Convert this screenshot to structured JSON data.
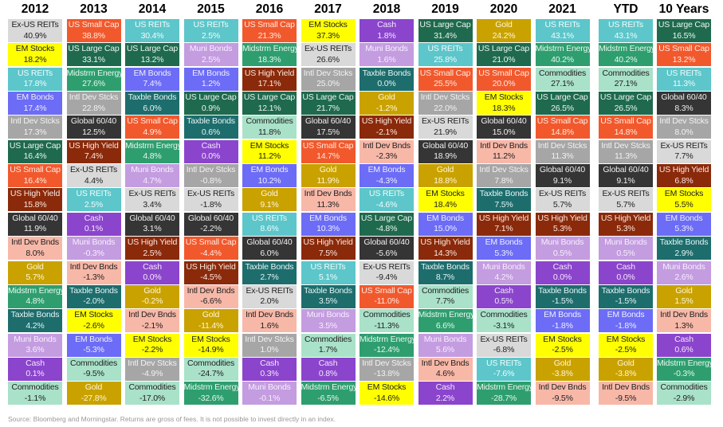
{
  "chart_data": {
    "type": "table",
    "title": "",
    "asset_colors": {
      "Ex-US REITs": {
        "bg": "#d9d9d9",
        "fg": "#222222"
      },
      "EM Stocks": {
        "bg": "#ffff00",
        "fg": "#222222"
      },
      "US REITs": {
        "bg": "#5cc6ca",
        "fg": "#f2fbfb"
      },
      "EM Bonds": {
        "bg": "#6c6cf6",
        "fg": "#eeeeff"
      },
      "Intl Dev Stcks": {
        "bg": "#a6a6a6",
        "fg": "#f2f2f2"
      },
      "US Large Cap": {
        "bg": "#1f6a4e",
        "fg": "#eaf5ef"
      },
      "US Small Cap": {
        "bg": "#f1592d",
        "fg": "#ffe9e0"
      },
      "US High Yield": {
        "bg": "#8a2a0b",
        "fg": "#fbe6dd"
      },
      "Global 60/40": {
        "bg": "#353535",
        "fg": "#eeeeee"
      },
      "Intl Dev Bnds": {
        "bg": "#f8b8a8",
        "fg": "#222222"
      },
      "Gold": {
        "bg": "#c9a200",
        "fg": "#fff6d6"
      },
      "Midstrm Energy": {
        "bg": "#2f9e6f",
        "fg": "#e6f7ee"
      },
      "Taxble Bonds": {
        "bg": "#1e6d6d",
        "fg": "#e4f3f3"
      },
      "Muni Bonds": {
        "bg": "#c49ce0",
        "fg": "#f7effd"
      },
      "Cash": {
        "bg": "#8b45cc",
        "fg": "#f3e9fb"
      },
      "Commodities": {
        "bg": "#a9e1c9",
        "fg": "#222222"
      }
    },
    "columns": [
      {
        "header": "2012",
        "cells": [
          [
            "Ex-US REITs",
            "40.9%"
          ],
          [
            "EM Stocks",
            "18.2%"
          ],
          [
            "US REITs",
            "17.8%"
          ],
          [
            "EM Bonds",
            "17.4%"
          ],
          [
            "Intl Dev Stcks",
            "17.3%"
          ],
          [
            "US Large Cap",
            "16.4%"
          ],
          [
            "US Small Cap",
            "16.4%"
          ],
          [
            "US High Yield",
            "15.8%"
          ],
          [
            "Global 60/40",
            "11.9%"
          ],
          [
            "Intl Dev Bnds",
            "8.0%"
          ],
          [
            "Gold",
            "5.7%"
          ],
          [
            "Midstrm Energy",
            "4.8%"
          ],
          [
            "Taxble Bonds",
            "4.2%"
          ],
          [
            "Muni Bonds",
            "3.6%"
          ],
          [
            "Cash",
            "0.1%"
          ],
          [
            "Commodities",
            "-1.1%"
          ]
        ]
      },
      {
        "header": "2013",
        "cells": [
          [
            "US Small Cap",
            "38.8%"
          ],
          [
            "US Large Cap",
            "33.1%"
          ],
          [
            "Midstrm Energy",
            "27.6%"
          ],
          [
            "Intl Dev Stcks",
            "22.8%"
          ],
          [
            "Global 60/40",
            "12.5%"
          ],
          [
            "US High Yield",
            "7.4%"
          ],
          [
            "Ex-US REITs",
            "4.4%"
          ],
          [
            "US REITs",
            "2.5%"
          ],
          [
            "Cash",
            "0.1%"
          ],
          [
            "Muni Bonds",
            "-0.3%"
          ],
          [
            "Intl Dev Bnds",
            "-1.3%"
          ],
          [
            "Taxble Bonds",
            "-2.0%"
          ],
          [
            "EM Stocks",
            "-2.6%"
          ],
          [
            "EM Bonds",
            "-5.3%"
          ],
          [
            "Commodities",
            "-9.5%"
          ],
          [
            "Gold",
            "-27.8%"
          ]
        ]
      },
      {
        "header": "2014",
        "cells": [
          [
            "US REITs",
            "30.4%"
          ],
          [
            "US Large Cap",
            "13.2%"
          ],
          [
            "EM Bonds",
            "7.4%"
          ],
          [
            "Taxble Bonds",
            "6.0%"
          ],
          [
            "US Small Cap",
            "4.9%"
          ],
          [
            "Midstrm Energy",
            "4.8%"
          ],
          [
            "Muni Bonds",
            "4.7%"
          ],
          [
            "Ex-US REITs",
            "3.4%"
          ],
          [
            "Global 60/40",
            "3.1%"
          ],
          [
            "US High Yield",
            "2.5%"
          ],
          [
            "Cash",
            "0.0%"
          ],
          [
            "Gold",
            "-0.2%"
          ],
          [
            "Intl Dev Bnds",
            "-2.1%"
          ],
          [
            "EM Stocks",
            "-2.2%"
          ],
          [
            "Intl Dev Stcks",
            "-4.9%"
          ],
          [
            "Commodities",
            "-17.0%"
          ]
        ]
      },
      {
        "header": "2015",
        "cells": [
          [
            "US REITs",
            "2.5%"
          ],
          [
            "Muni Bonds",
            "2.5%"
          ],
          [
            "EM Bonds",
            "1.2%"
          ],
          [
            "US Large Cap",
            "0.9%"
          ],
          [
            "Taxble Bonds",
            "0.6%"
          ],
          [
            "Cash",
            "0.0%"
          ],
          [
            "Intl Dev Stcks",
            "-0.8%"
          ],
          [
            "Ex-US REITs",
            "-1.8%"
          ],
          [
            "Global 60/40",
            "-2.2%"
          ],
          [
            "US Small Cap",
            "-4.4%"
          ],
          [
            "US High Yield",
            "-4.5%"
          ],
          [
            "Intl Dev Bnds",
            "-6.6%"
          ],
          [
            "Gold",
            "-11.4%"
          ],
          [
            "EM Stocks",
            "-14.9%"
          ],
          [
            "Commodities",
            "-24.7%"
          ],
          [
            "Midstrm Energy",
            "-32.6%"
          ]
        ]
      },
      {
        "header": "2016",
        "cells": [
          [
            "US Small Cap",
            "21.3%"
          ],
          [
            "Midstrm Energy",
            "18.3%"
          ],
          [
            "US High Yield",
            "17.1%"
          ],
          [
            "US Large Cap",
            "12.1%"
          ],
          [
            "Commodities",
            "11.8%"
          ],
          [
            "EM Stocks",
            "11.2%"
          ],
          [
            "EM Bonds",
            "10.2%"
          ],
          [
            "Gold",
            "9.1%"
          ],
          [
            "US REITs",
            "8.6%"
          ],
          [
            "Global 60/40",
            "6.0%"
          ],
          [
            "Taxble Bonds",
            "2.7%"
          ],
          [
            "Ex-US REITs",
            "2.0%"
          ],
          [
            "Intl Dev Bnds",
            "1.6%"
          ],
          [
            "Intl Dev Stcks",
            "1.0%"
          ],
          [
            "Cash",
            "0.3%"
          ],
          [
            "Muni Bonds",
            "-0.1%"
          ]
        ]
      },
      {
        "header": "2017",
        "cells": [
          [
            "EM Stocks",
            "37.3%"
          ],
          [
            "Ex-US REITs",
            "26.6%"
          ],
          [
            "Intl Dev Stcks",
            "25.0%"
          ],
          [
            "US Large Cap",
            "21.7%"
          ],
          [
            "Global 60/40",
            "17.5%"
          ],
          [
            "US Small Cap",
            "14.7%"
          ],
          [
            "Gold",
            "11.9%"
          ],
          [
            "Intl Dev Bnds",
            "11.3%"
          ],
          [
            "EM Bonds",
            "10.3%"
          ],
          [
            "US High Yield",
            "7.5%"
          ],
          [
            "US REITs",
            "5.1%"
          ],
          [
            "Taxble Bonds",
            "3.5%"
          ],
          [
            "Muni Bonds",
            "3.5%"
          ],
          [
            "Commodities",
            "1.7%"
          ],
          [
            "Cash",
            "0.8%"
          ],
          [
            "Midstrm Energy",
            "-6.5%"
          ]
        ]
      },
      {
        "header": "2018",
        "cells": [
          [
            "Cash",
            "1.8%"
          ],
          [
            "Muni Bonds",
            "1.6%"
          ],
          [
            "Taxble Bonds",
            "0.0%"
          ],
          [
            "Gold",
            "-1.2%"
          ],
          [
            "US High Yield",
            "-2.1%"
          ],
          [
            "Intl Dev Bnds",
            "-2.3%"
          ],
          [
            "EM Bonds",
            "-4.3%"
          ],
          [
            "US REITs",
            "-4.6%"
          ],
          [
            "US Large Cap",
            "-4.8%"
          ],
          [
            "Global 60/40",
            "-5.6%"
          ],
          [
            "Ex-US REITs",
            "-9.4%"
          ],
          [
            "US Small Cap",
            "-11.0%"
          ],
          [
            "Commodities",
            "-11.3%"
          ],
          [
            "Midstrm Energy",
            "-12.4%"
          ],
          [
            "Intl Dev Stcks",
            "-13.8%"
          ],
          [
            "EM Stocks",
            "-14.6%"
          ]
        ]
      },
      {
        "header": "2019",
        "cells": [
          [
            "US Large Cap",
            "31.4%"
          ],
          [
            "US REITs",
            "25.8%"
          ],
          [
            "US Small Cap",
            "25.5%"
          ],
          [
            "Intl Dev Stcks",
            "22.0%"
          ],
          [
            "Ex-US REITs",
            "21.9%"
          ],
          [
            "Global 60/40",
            "18.9%"
          ],
          [
            "Gold",
            "18.8%"
          ],
          [
            "EM Stocks",
            "18.4%"
          ],
          [
            "EM Bonds",
            "15.0%"
          ],
          [
            "US High Yield",
            "14.3%"
          ],
          [
            "Taxble Bonds",
            "8.7%"
          ],
          [
            "Commodities",
            "7.7%"
          ],
          [
            "Midstrm Energy",
            "6.6%"
          ],
          [
            "Muni Bonds",
            "5.6%"
          ],
          [
            "Intl Dev Bnds",
            "4.6%"
          ],
          [
            "Cash",
            "2.2%"
          ]
        ]
      },
      {
        "header": "2020",
        "cells": [
          [
            "Gold",
            "24.2%"
          ],
          [
            "US Large Cap",
            "21.0%"
          ],
          [
            "US Small Cap",
            "20.0%"
          ],
          [
            "EM Stocks",
            "18.3%"
          ],
          [
            "Global 60/40",
            "15.0%"
          ],
          [
            "Intl Dev Bnds",
            "11.2%"
          ],
          [
            "Intl Dev Stcks",
            "7.8%"
          ],
          [
            "Taxble Bonds",
            "7.5%"
          ],
          [
            "US High Yield",
            "7.1%"
          ],
          [
            "EM Bonds",
            "5.3%"
          ],
          [
            "Muni Bonds",
            "4.2%"
          ],
          [
            "Cash",
            "0.5%"
          ],
          [
            "Commodities",
            "-3.1%"
          ],
          [
            "Ex-US REITs",
            "-6.8%"
          ],
          [
            "US REITs",
            "-7.6%"
          ],
          [
            "Midstrm Energy",
            "-28.7%"
          ]
        ]
      },
      {
        "header": "2021",
        "cells": [
          [
            "US REITs",
            "43.1%"
          ],
          [
            "Midstrm Energy",
            "40.2%"
          ],
          [
            "Commodities",
            "27.1%"
          ],
          [
            "US Large Cap",
            "26.5%"
          ],
          [
            "US Small Cap",
            "14.8%"
          ],
          [
            "Intl Dev Stcks",
            "11.3%"
          ],
          [
            "Global 60/40",
            "9.1%"
          ],
          [
            "Ex-US REITs",
            "5.7%"
          ],
          [
            "US High Yield",
            "5.3%"
          ],
          [
            "Muni Bonds",
            "0.5%"
          ],
          [
            "Cash",
            "0.0%"
          ],
          [
            "Taxble Bonds",
            "-1.5%"
          ],
          [
            "EM Bonds",
            "-1.8%"
          ],
          [
            "EM Stocks",
            "-2.5%"
          ],
          [
            "Gold",
            "-3.8%"
          ],
          [
            "Intl Dev Bnds",
            "-9.5%"
          ]
        ]
      },
      {
        "header": "YTD",
        "cells": [
          [
            "US REITs",
            "43.1%"
          ],
          [
            "Midstrm Energy",
            "40.2%"
          ],
          [
            "Commodities",
            "27.1%"
          ],
          [
            "US Large Cap",
            "26.5%"
          ],
          [
            "US Small Cap",
            "14.8%"
          ],
          [
            "Intl Dev Stcks",
            "11.3%"
          ],
          [
            "Global 60/40",
            "9.1%"
          ],
          [
            "Ex-US REITs",
            "5.7%"
          ],
          [
            "US High Yield",
            "5.3%"
          ],
          [
            "Muni Bonds",
            "0.5%"
          ],
          [
            "Cash",
            "0.0%"
          ],
          [
            "Taxble Bonds",
            "-1.5%"
          ],
          [
            "EM Bonds",
            "-1.8%"
          ],
          [
            "EM Stocks",
            "-2.5%"
          ],
          [
            "Gold",
            "-3.8%"
          ],
          [
            "Intl Dev Bnds",
            "-9.5%"
          ]
        ]
      },
      {
        "header": "10 Years",
        "cells": [
          [
            "US Large Cap",
            "16.5%"
          ],
          [
            "US Small Cap",
            "13.2%"
          ],
          [
            "US REITs",
            "11.3%"
          ],
          [
            "Global 60/40",
            "8.3%"
          ],
          [
            "Intl Dev Stcks",
            "8.0%"
          ],
          [
            "Ex-US REITs",
            "7.7%"
          ],
          [
            "US High Yield",
            "6.8%"
          ],
          [
            "EM Stocks",
            "5.5%"
          ],
          [
            "EM Bonds",
            "5.3%"
          ],
          [
            "Taxble Bonds",
            "2.9%"
          ],
          [
            "Muni Bonds",
            "2.6%"
          ],
          [
            "Gold",
            "1.5%"
          ],
          [
            "Intl Dev Bnds",
            "1.3%"
          ],
          [
            "Cash",
            "0.6%"
          ],
          [
            "Midstrm Energy",
            "-0.3%"
          ],
          [
            "Commodities",
            "-2.9%"
          ]
        ]
      }
    ]
  },
  "footer": {
    "source": "Source: Bloomberg and Morningstar. Returns are gross of fees. It is not possible to invest directly in an index."
  }
}
